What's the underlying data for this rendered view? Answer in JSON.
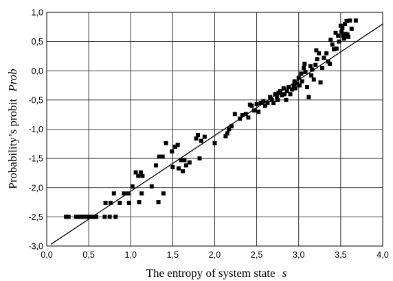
{
  "chart_data": {
    "type": "scatter",
    "title": "",
    "xlabel": "The entropy of system state",
    "xlabel_var": "s",
    "ylabel": "Probability’s probit",
    "ylabel_var": "Prob",
    "xlim": [
      0.0,
      4.0
    ],
    "ylim": [
      -3.0,
      1.0
    ],
    "x_ticks": [
      0.0,
      0.5,
      1.0,
      1.5,
      2.0,
      2.5,
      3.0,
      3.5,
      4.0
    ],
    "x_tick_labels": [
      "0,0",
      "0,5",
      "1,0",
      "1,5",
      "2,0",
      "2,5",
      "3,0",
      "3,5",
      "4,0"
    ],
    "y_ticks": [
      -3.0,
      -2.5,
      -2.0,
      -1.5,
      -1.0,
      -0.5,
      0.0,
      0.5,
      1.0
    ],
    "y_tick_labels": [
      "-3,0",
      "-2,5",
      "-2,0",
      "-1,5",
      "-1,0",
      "-0,5",
      "0,0",
      "0,5",
      "1,0"
    ],
    "grid": true,
    "marker_color": "#000000",
    "series": [
      {
        "points": [
          [
            0.23,
            -2.5
          ],
          [
            0.26,
            -2.5
          ],
          [
            0.35,
            -2.5
          ],
          [
            0.38,
            -2.5
          ],
          [
            0.41,
            -2.5
          ],
          [
            0.44,
            -2.5
          ],
          [
            0.47,
            -2.5
          ],
          [
            0.5,
            -2.5
          ],
          [
            0.53,
            -2.5
          ],
          [
            0.56,
            -2.5
          ],
          [
            0.59,
            -2.5
          ],
          [
            0.69,
            -2.5
          ],
          [
            0.75,
            -2.5
          ],
          [
            0.82,
            -2.5
          ],
          [
            0.7,
            -2.26
          ],
          [
            0.76,
            -2.26
          ],
          [
            0.8,
            -2.1
          ],
          [
            0.87,
            -2.26
          ],
          [
            0.92,
            -2.1
          ],
          [
            0.97,
            -2.1
          ],
          [
            0.98,
            -2.26
          ],
          [
            1.02,
            -1.98
          ],
          [
            1.06,
            -1.74
          ],
          [
            1.09,
            -1.8
          ],
          [
            1.1,
            -2.25
          ],
          [
            1.12,
            -1.74
          ],
          [
            1.14,
            -1.8
          ],
          [
            1.13,
            -2.1
          ],
          [
            1.25,
            -1.98
          ],
          [
            1.3,
            -1.62
          ],
          [
            1.34,
            -1.47
          ],
          [
            1.38,
            -1.47
          ],
          [
            1.33,
            -2.25
          ],
          [
            1.39,
            -2.1
          ],
          [
            1.42,
            -1.24
          ],
          [
            1.49,
            -1.38
          ],
          [
            1.5,
            -1.65
          ],
          [
            1.53,
            -1.3
          ],
          [
            1.56,
            -1.27
          ],
          [
            1.57,
            -1.67
          ],
          [
            1.6,
            -1.53
          ],
          [
            1.62,
            -1.72
          ],
          [
            1.64,
            -1.53
          ],
          [
            1.66,
            -1.62
          ],
          [
            1.7,
            -1.57
          ],
          [
            1.78,
            -1.16
          ],
          [
            1.8,
            -1.1
          ],
          [
            1.82,
            -1.5
          ],
          [
            1.84,
            -1.2
          ],
          [
            1.88,
            -1.13
          ],
          [
            2.0,
            -1.24
          ],
          [
            2.13,
            -1.12
          ],
          [
            2.15,
            -1.07
          ],
          [
            2.17,
            -1.0
          ],
          [
            2.2,
            -0.95
          ],
          [
            2.24,
            -0.74
          ],
          [
            2.3,
            -0.82
          ],
          [
            2.33,
            -0.76
          ],
          [
            2.37,
            -0.74
          ],
          [
            2.4,
            -0.8
          ],
          [
            2.42,
            -0.58
          ],
          [
            2.44,
            -0.6
          ],
          [
            2.47,
            -0.68
          ],
          [
            2.5,
            -0.57
          ],
          [
            2.52,
            -0.7
          ],
          [
            2.55,
            -0.55
          ],
          [
            2.58,
            -0.52
          ],
          [
            2.6,
            -0.6
          ],
          [
            2.63,
            -0.55
          ],
          [
            2.66,
            -0.45
          ],
          [
            2.68,
            -0.5
          ],
          [
            2.7,
            -0.55
          ],
          [
            2.72,
            -0.4
          ],
          [
            2.74,
            -0.45
          ],
          [
            2.75,
            -0.5
          ],
          [
            2.76,
            -0.38
          ],
          [
            2.78,
            -0.35
          ],
          [
            2.8,
            -0.42
          ],
          [
            2.82,
            -0.3
          ],
          [
            2.83,
            -0.4
          ],
          [
            2.85,
            -0.5
          ],
          [
            2.86,
            -0.35
          ],
          [
            2.88,
            -0.28
          ],
          [
            2.9,
            -0.4
          ],
          [
            2.92,
            -0.32
          ],
          [
            2.94,
            -0.25
          ],
          [
            2.95,
            -0.18
          ],
          [
            2.96,
            -0.3
          ],
          [
            2.98,
            -0.22
          ],
          [
            3.0,
            -0.12
          ],
          [
            3.01,
            -0.25
          ],
          [
            3.03,
            -0.05
          ],
          [
            3.04,
            -0.18
          ],
          [
            3.06,
            0.05
          ],
          [
            3.07,
            0.12
          ],
          [
            3.08,
            -0.02
          ],
          [
            3.1,
            -0.28
          ],
          [
            3.12,
            -0.45
          ],
          [
            3.14,
            0.08
          ],
          [
            3.15,
            -0.08
          ],
          [
            3.16,
            0.02
          ],
          [
            3.18,
            -0.15
          ],
          [
            3.2,
            0.1
          ],
          [
            3.21,
            0.35
          ],
          [
            3.22,
            0.2
          ],
          [
            3.24,
            0.3
          ],
          [
            3.26,
            -0.2
          ],
          [
            3.28,
            0.05
          ],
          [
            3.3,
            0.22
          ],
          [
            3.33,
            0.3
          ],
          [
            3.35,
            0.16
          ],
          [
            3.37,
            0.12
          ],
          [
            3.38,
            0.53
          ],
          [
            3.4,
            0.45
          ],
          [
            3.42,
            0.37
          ],
          [
            3.44,
            0.65
          ],
          [
            3.45,
            0.38
          ],
          [
            3.47,
            0.6
          ],
          [
            3.48,
            0.5
          ],
          [
            3.5,
            0.77
          ],
          [
            3.51,
            0.67
          ],
          [
            3.52,
            0.73
          ],
          [
            3.53,
            0.6
          ],
          [
            3.54,
            0.55
          ],
          [
            3.55,
            0.8
          ],
          [
            3.56,
            0.63
          ],
          [
            3.57,
            0.85
          ],
          [
            3.58,
            0.62
          ],
          [
            3.59,
            0.58
          ],
          [
            3.61,
            0.86
          ],
          [
            3.63,
            0.72
          ],
          [
            3.68,
            0.86
          ]
        ]
      }
    ],
    "fit_line": {
      "x": [
        0.05,
        4.0
      ],
      "y": [
        -2.97,
        0.8
      ]
    }
  }
}
